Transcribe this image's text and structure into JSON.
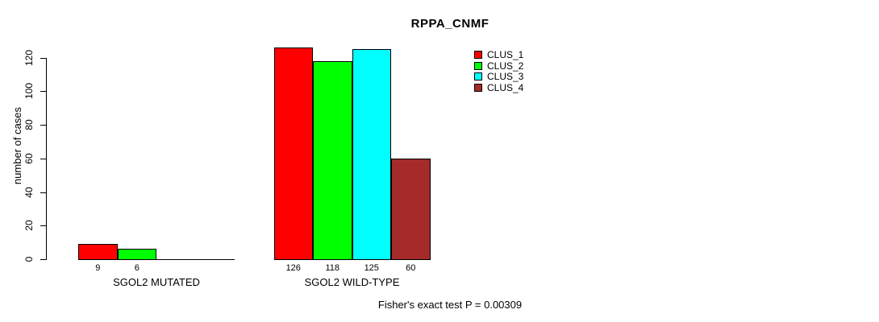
{
  "chart_data": {
    "type": "bar",
    "title": "RPPA_CNMF",
    "xlabel": "",
    "ylabel": "number of cases",
    "ylim": [
      0,
      120
    ],
    "yticks": [
      0,
      20,
      40,
      60,
      80,
      100,
      120
    ],
    "categories": [
      "SGOL2 MUTATED",
      "SGOL2 WILD-TYPE"
    ],
    "series": [
      {
        "name": "CLUS_1",
        "color": "#ff0000",
        "values": [
          9,
          126
        ]
      },
      {
        "name": "CLUS_2",
        "color": "#00ff00",
        "values": [
          6,
          118
        ]
      },
      {
        "name": "CLUS_3",
        "color": "#00ffff",
        "values": [
          0,
          125
        ]
      },
      {
        "name": "CLUS_4",
        "color": "#a52a2a",
        "values": [
          0,
          60
        ]
      }
    ],
    "bar_value_labels": [
      [
        "9",
        "6",
        "",
        ""
      ],
      [
        "126",
        "118",
        "125",
        "60"
      ]
    ],
    "annotation": "Fisher's exact test P = 0.00309",
    "legend_position": "top-right",
    "legend_entries": [
      "CLUS_1",
      "CLUS_2",
      "CLUS_3",
      "CLUS_4"
    ],
    "grid": false,
    "background_color": "#ffffff",
    "axis_color": "#000000"
  }
}
